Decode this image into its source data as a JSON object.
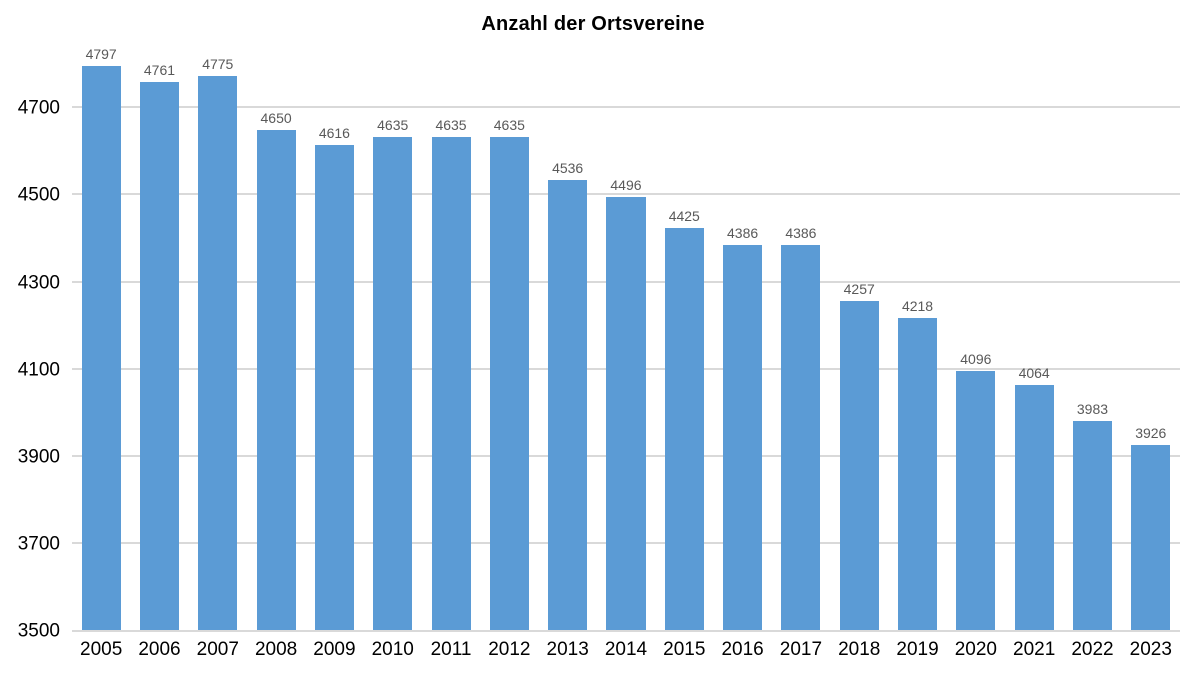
{
  "chart_data": {
    "type": "bar",
    "title": "Anzahl der Ortsvereine",
    "categories": [
      "2005",
      "2006",
      "2007",
      "2008",
      "2009",
      "2010",
      "2011",
      "2012",
      "2013",
      "2014",
      "2015",
      "2016",
      "2017",
      "2018",
      "2019",
      "2020",
      "2021",
      "2022",
      "2023"
    ],
    "values": [
      4797,
      4761,
      4775,
      4650,
      4616,
      4635,
      4635,
      4635,
      4536,
      4496,
      4425,
      4386,
      4386,
      4257,
      4218,
      4096,
      4064,
      3983,
      3926
    ],
    "xlabel": "",
    "ylabel": "",
    "ylim": [
      3500,
      4850
    ],
    "yticks": [
      3500,
      3700,
      3900,
      4100,
      4300,
      4500,
      4700
    ],
    "grid": true,
    "legend": false,
    "data_labels": true,
    "colors": {
      "bar": "#5B9BD5",
      "gridline": "#D9D9D9",
      "value_label": "#595959",
      "axis_label": "#000000",
      "title": "#000000",
      "background": "#FFFFFF"
    }
  }
}
